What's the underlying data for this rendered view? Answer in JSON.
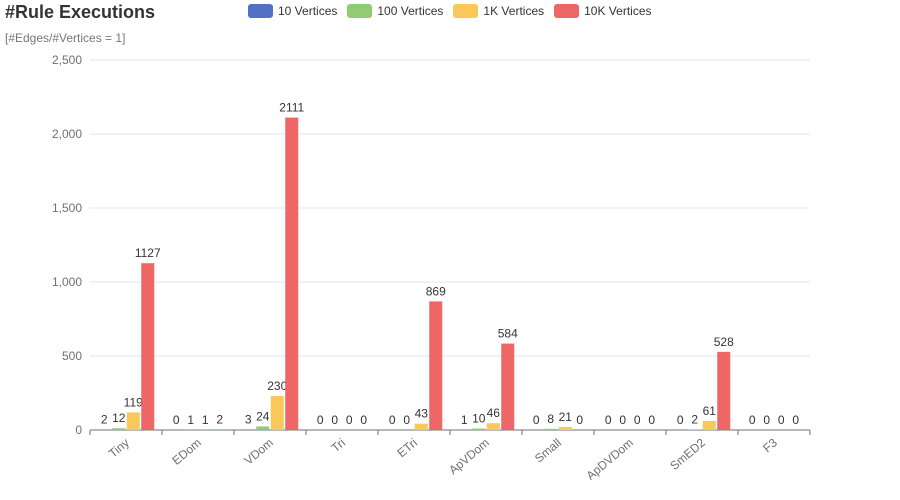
{
  "chart_data": {
    "type": "bar",
    "title": "#Rule Executions",
    "subtitle": "[#Edges/#Vertices = 1]",
    "categories": [
      "Tiny",
      "EDom",
      "VDom",
      "Tri",
      "ETri",
      "ApVDom",
      "Small",
      "ApDVDom",
      "SmED2",
      "F3"
    ],
    "series": [
      {
        "name": "10 Vertices",
        "color": "#5470c6",
        "values": [
          2,
          0,
          3,
          0,
          0,
          1,
          0,
          0,
          0,
          0
        ]
      },
      {
        "name": "100 Vertices",
        "color": "#91cc75",
        "values": [
          12,
          1,
          24,
          0,
          0,
          10,
          8,
          0,
          2,
          0
        ]
      },
      {
        "name": "1K Vertices",
        "color": "#fac858",
        "values": [
          119,
          1,
          230,
          0,
          43,
          46,
          21,
          0,
          61,
          0
        ]
      },
      {
        "name": "10K Vertices",
        "color": "#ee6666",
        "values": [
          1127,
          2,
          2111,
          0,
          869,
          584,
          0,
          0,
          528,
          0
        ]
      }
    ],
    "ylim": [
      0,
      2500
    ],
    "yticks": [
      0,
      500,
      1000,
      1500,
      2000,
      2500
    ],
    "ytick_labels": [
      "0",
      "500",
      "1,000",
      "1,500",
      "2,000",
      "2,500"
    ],
    "grid": true,
    "legend_position": "top-center"
  }
}
